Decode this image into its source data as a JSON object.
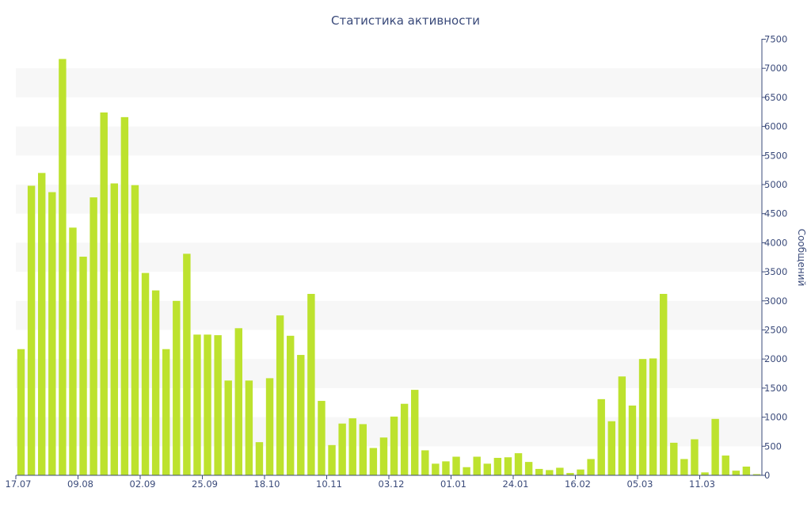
{
  "chart_data": {
    "type": "bar",
    "title": "Статистика активности",
    "xlabel": "",
    "ylabel": "Сообщений",
    "y_axis_side": "right",
    "ylim": [
      0,
      7500
    ],
    "y_ticks": [
      0,
      500,
      1000,
      1500,
      2000,
      2500,
      3000,
      3500,
      4000,
      4500,
      5000,
      5500,
      6000,
      6500,
      7000,
      7500
    ],
    "x_tick_labels": [
      {
        "label": "17.07",
        "index": 0
      },
      {
        "label": "09.08",
        "index": 6
      },
      {
        "label": "02.09",
        "index": 12
      },
      {
        "label": "25.09",
        "index": 18
      },
      {
        "label": "18.10",
        "index": 24
      },
      {
        "label": "10.11",
        "index": 30
      },
      {
        "label": "03.12",
        "index": 36
      },
      {
        "label": "01.01",
        "index": 42
      },
      {
        "label": "24.01",
        "index": 48
      },
      {
        "label": "16.02",
        "index": 54
      },
      {
        "label": "05.03",
        "index": 60
      },
      {
        "label": "11.03",
        "index": 66
      }
    ],
    "grid": "alternating horizontal bands",
    "legend": "none",
    "bar_color": "#bde22e",
    "band_color": "#f7f7f7",
    "text_color": "#3a4a7a",
    "values": [
      2170,
      4980,
      5200,
      4870,
      7160,
      4260,
      3760,
      4780,
      6240,
      5020,
      6160,
      4990,
      3480,
      3180,
      2170,
      3000,
      3810,
      2420,
      2420,
      2410,
      1630,
      2530,
      1630,
      570,
      1670,
      2750,
      2400,
      2070,
      3120,
      1280,
      520,
      890,
      980,
      880,
      470,
      650,
      1010,
      1230,
      1470,
      430,
      200,
      240,
      320,
      140,
      320,
      200,
      300,
      310,
      380,
      230,
      110,
      90,
      130,
      40,
      100,
      280,
      1310,
      930,
      1700,
      1200,
      2000,
      2010,
      3120,
      560,
      280,
      620,
      50,
      970,
      340,
      80,
      150,
      20
    ]
  }
}
